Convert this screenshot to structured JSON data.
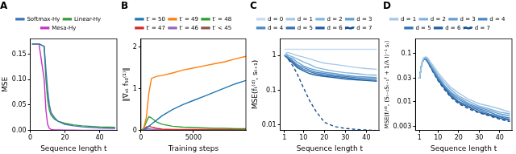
{
  "chart_data": [
    {
      "type": "line",
      "title": "A",
      "x_label": "Sequence length t",
      "y_label": "MSE",
      "x": [
        1,
        5,
        8,
        9,
        10,
        11,
        12,
        14,
        16,
        20,
        25,
        30,
        40,
        49
      ],
      "xlim": [
        0,
        50
      ],
      "xticks": [
        0,
        20,
        40
      ],
      "ylim": [
        0,
        0.18
      ],
      "yticks": [
        {
          "value": 0,
          "label": "0.00"
        },
        {
          "value": 0.05,
          "label": "0.05"
        },
        {
          "value": 0.1,
          "label": "0.10"
        },
        {
          "value": 0.15,
          "label": "0.15"
        }
      ],
      "grid": false,
      "legend": "top",
      "series": [
        {
          "name": "Softmax-Hy",
          "color": "#3a76b0",
          "line_style": "solid",
          "values": [
            0.17,
            0.17,
            0.165,
            0.12,
            0.08,
            0.05,
            0.035,
            0.025,
            0.018,
            0.012,
            0.009,
            0.007,
            0.005,
            0.004
          ]
        },
        {
          "name": "Linear-Hy",
          "color": "#3a9a3a",
          "line_style": "solid",
          "values": [
            0.17,
            0.17,
            0.165,
            0.1,
            0.06,
            0.04,
            0.03,
            0.022,
            0.018,
            0.014,
            0.011,
            0.009,
            0.007,
            0.006
          ]
        },
        {
          "name": "Mesa-Hy",
          "color": "#c832c8",
          "line_style": "solid",
          "values": [
            0.17,
            0.17,
            0.1,
            0.04,
            0.012,
            0.004,
            0.002,
            0.001,
            0.001,
            0.0005,
            0.0005,
            0.0004,
            0.0003,
            0.0003
          ]
        }
      ]
    },
    {
      "type": "line",
      "title": "B",
      "x_label": "Training steps",
      "y_label": "‖∇ₛₜ f₅₀⁽¹⁾‖",
      "x": [
        0,
        250,
        500,
        750,
        1000,
        1500,
        2000,
        3000,
        4000,
        5000,
        6000,
        7000,
        8000,
        9000,
        10000
      ],
      "xlim": [
        0,
        10000
      ],
      "xticks": [
        0,
        5000
      ],
      "ylim": [
        0,
        2.2
      ],
      "yticks": [
        0,
        1,
        2
      ],
      "grid": false,
      "legend": "top",
      "series": [
        {
          "name": "t′ = 50",
          "color": "#1f77b4",
          "line_style": "solid",
          "values": [
            0,
            0.02,
            0.05,
            0.1,
            0.15,
            0.25,
            0.35,
            0.5,
            0.62,
            0.72,
            0.82,
            0.92,
            1.02,
            1.12,
            1.2
          ]
        },
        {
          "name": "t′ = 49",
          "color": "#ff7f0e",
          "line_style": "solid",
          "values": [
            0,
            0.05,
            0.3,
            0.9,
            1.25,
            1.3,
            1.32,
            1.38,
            1.45,
            1.5,
            1.55,
            1.6,
            1.65,
            1.72,
            1.78
          ]
        },
        {
          "name": "t′ = 48",
          "color": "#2ca02c",
          "line_style": "solid",
          "values": [
            0,
            0.05,
            0.2,
            0.33,
            0.3,
            0.2,
            0.15,
            0.1,
            0.08,
            0.07,
            0.06,
            0.05,
            0.05,
            0.04,
            0.04
          ]
        },
        {
          "name": "t′ = 47",
          "color": "#d62728",
          "line_style": "solid",
          "values": [
            0,
            0.02,
            0.08,
            0.1,
            0.08,
            0.05,
            0.03,
            0.02,
            0.02,
            0.02,
            0.02,
            0.02,
            0.02,
            0.02,
            0.02
          ]
        },
        {
          "name": "t′ = 46",
          "color": "#9467bd",
          "line_style": "solid",
          "values": [
            0,
            0.01,
            0.03,
            0.04,
            0.03,
            0.02,
            0.01,
            0.01,
            0.01,
            0.01,
            0.01,
            0.01,
            0.01,
            0.01,
            0.01
          ]
        },
        {
          "name": "t′ < 45",
          "color": "#8c564b",
          "line_style": "solid",
          "values": [
            0,
            0.005,
            0.01,
            0.01,
            0.01,
            0.01,
            0.01,
            0.01,
            0.01,
            0.01,
            0.01,
            0.01,
            0.01,
            0.01,
            0.01
          ]
        }
      ]
    },
    {
      "type": "line",
      "title": "C",
      "x_label": "Sequence length t",
      "y_label": "MSE(fₜ⁽ᵈ⁾, sₜ₊₁)",
      "x": [
        1,
        2,
        3,
        5,
        7,
        10,
        13,
        16,
        20,
        25,
        30,
        35,
        40,
        45
      ],
      "xlim": [
        -1,
        46
      ],
      "xticks": [
        1,
        10,
        20,
        30,
        40
      ],
      "ylim": [
        0.007,
        3
      ],
      "yticks": [
        0.01,
        0.1,
        1
      ],
      "log": "y",
      "grid": false,
      "legend": "top",
      "series": [
        {
          "name": "d = 0",
          "color": "#c6dbef",
          "line_style": "solid",
          "values": [
            1.5,
            1.5,
            1.5,
            1.5,
            1.5,
            1.5,
            1.5,
            1.5,
            1.5,
            1.5,
            1.5,
            1.5,
            1.5,
            1.5
          ]
        },
        {
          "name": "d = 1",
          "color": "#a6c8e6",
          "line_style": "solid",
          "values": [
            1,
            1.2,
            1.2,
            1.1,
            1.0,
            0.9,
            0.8,
            0.7,
            0.6,
            0.55,
            0.5,
            0.45,
            0.42,
            0.4
          ]
        },
        {
          "name": "d = 2",
          "color": "#85b3dc",
          "line_style": "solid",
          "values": [
            1,
            1.1,
            1.0,
            0.9,
            0.8,
            0.65,
            0.55,
            0.45,
            0.4,
            0.35,
            0.32,
            0.3,
            0.28,
            0.27
          ]
        },
        {
          "name": "d = 3",
          "color": "#659ecf",
          "line_style": "solid",
          "values": [
            1,
            1.0,
            0.9,
            0.8,
            0.65,
            0.5,
            0.42,
            0.38,
            0.33,
            0.3,
            0.27,
            0.25,
            0.24,
            0.23
          ]
        },
        {
          "name": "d = 4",
          "color": "#4a88c2",
          "line_style": "solid",
          "values": [
            1,
            0.95,
            0.85,
            0.7,
            0.55,
            0.45,
            0.38,
            0.33,
            0.3,
            0.27,
            0.25,
            0.23,
            0.22,
            0.21
          ]
        },
        {
          "name": "d = 5",
          "color": "#3573b3",
          "line_style": "solid",
          "values": [
            1,
            0.9,
            0.8,
            0.65,
            0.5,
            0.4,
            0.34,
            0.3,
            0.27,
            0.25,
            0.23,
            0.21,
            0.2,
            0.19
          ]
        },
        {
          "name": "d = 6",
          "color": "#235fa0",
          "line_style": "solid",
          "values": [
            1,
            0.9,
            0.75,
            0.6,
            0.45,
            0.36,
            0.3,
            0.27,
            0.25,
            0.23,
            0.21,
            0.2,
            0.19,
            0.18
          ]
        },
        {
          "name": "d = 7",
          "color": "#1a4f8f",
          "line_style": "dashed",
          "values": [
            1,
            0.9,
            0.75,
            0.5,
            0.3,
            0.12,
            0.05,
            0.025,
            0.012,
            0.009,
            0.008,
            0.0075,
            0.0072,
            0.007
          ]
        }
      ]
    },
    {
      "type": "line",
      "title": "D",
      "x_label": "Sequence length t",
      "y_label": "MSE(fₜ⁽ᵈ⁾, (Sₜ₋₁Sₜ₋₁ᵀ + 1/λ I)⁻¹ sₜ)",
      "x": [
        1,
        2,
        3,
        4,
        5,
        7,
        10,
        13,
        16,
        20,
        25,
        30,
        35,
        40,
        45
      ],
      "xlim": [
        -1,
        46
      ],
      "xticks": [
        1,
        10,
        20,
        30,
        40
      ],
      "ylim": [
        0.0025,
        0.2
      ],
      "yticks": [
        0.003,
        0.01,
        0.03,
        0.1
      ],
      "log": "y",
      "grid": false,
      "legend": "top",
      "series": [
        {
          "name": "d = 1",
          "color": "#a6c8e6",
          "line_style": "solid",
          "values": [
            0.03,
            0.06,
            0.08,
            0.085,
            0.08,
            0.06,
            0.04,
            0.028,
            0.02,
            0.015,
            0.011,
            0.009,
            0.008,
            0.007,
            0.006
          ]
        },
        {
          "name": "d = 2",
          "color": "#85b3dc",
          "line_style": "solid",
          "values": [
            0.03,
            0.06,
            0.08,
            0.082,
            0.075,
            0.055,
            0.036,
            0.025,
            0.018,
            0.013,
            0.01,
            0.008,
            0.007,
            0.006,
            0.0055
          ]
        },
        {
          "name": "d = 3",
          "color": "#659ecf",
          "line_style": "solid",
          "values": [
            0.03,
            0.06,
            0.078,
            0.08,
            0.072,
            0.052,
            0.033,
            0.022,
            0.016,
            0.012,
            0.009,
            0.0075,
            0.0065,
            0.0055,
            0.005
          ]
        },
        {
          "name": "d = 4",
          "color": "#4a88c2",
          "line_style": "solid",
          "values": [
            0.03,
            0.06,
            0.077,
            0.078,
            0.07,
            0.05,
            0.031,
            0.021,
            0.015,
            0.011,
            0.0085,
            0.007,
            0.006,
            0.005,
            0.0045
          ]
        },
        {
          "name": "d = 5",
          "color": "#3573b3",
          "line_style": "solid",
          "values": [
            0.03,
            0.06,
            0.076,
            0.077,
            0.068,
            0.048,
            0.029,
            0.02,
            0.014,
            0.01,
            0.008,
            0.0065,
            0.0055,
            0.0048,
            0.0042
          ]
        },
        {
          "name": "d = 6",
          "color": "#235fa0",
          "line_style": "solid",
          "values": [
            0.03,
            0.06,
            0.075,
            0.076,
            0.066,
            0.046,
            0.028,
            0.019,
            0.013,
            0.0095,
            0.0075,
            0.006,
            0.0052,
            0.0045,
            0.004
          ]
        },
        {
          "name": "d = 7",
          "color": "#1a4f8f",
          "line_style": "dashed",
          "values": [
            0.03,
            0.06,
            0.074,
            0.075,
            0.065,
            0.045,
            0.027,
            0.018,
            0.0125,
            0.009,
            0.007,
            0.0058,
            0.005,
            0.0043,
            0.0038
          ]
        }
      ]
    }
  ]
}
